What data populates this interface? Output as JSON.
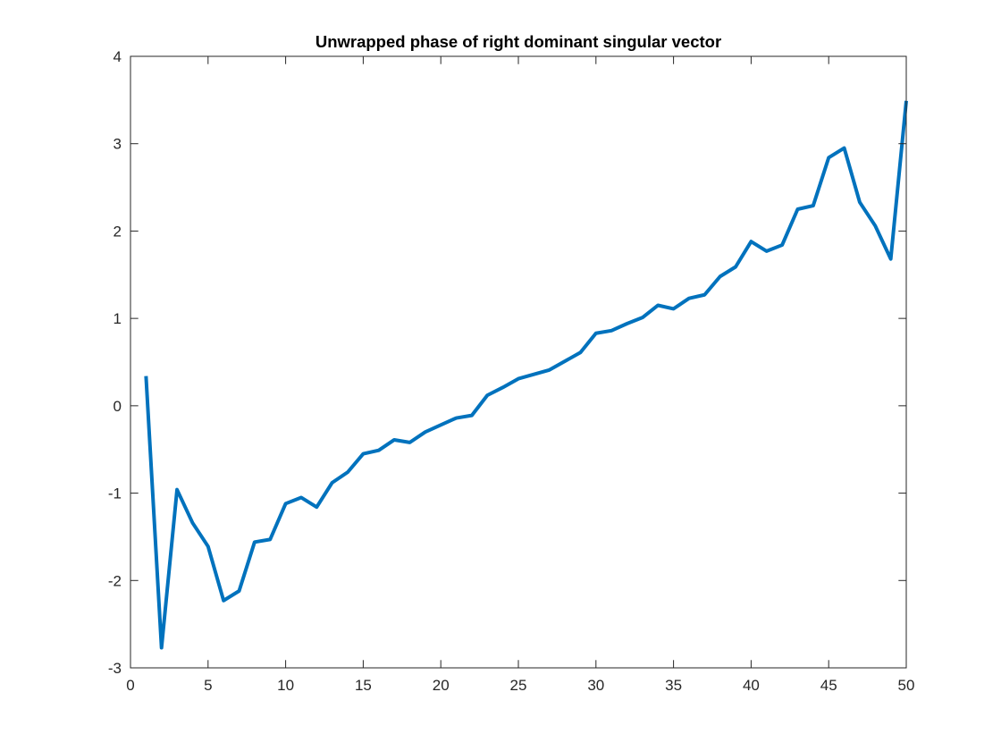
{
  "chart_data": {
    "type": "line",
    "title": "Unwrapped phase of right dominant singular vector",
    "xlabel": "",
    "ylabel": "",
    "xlim": [
      0,
      50
    ],
    "ylim": [
      -3,
      4
    ],
    "grid": false,
    "legend": "none",
    "x_ticks": [
      0,
      5,
      10,
      15,
      20,
      25,
      30,
      35,
      40,
      45,
      50
    ],
    "y_ticks": [
      -3,
      -2,
      -1,
      0,
      1,
      2,
      3,
      4
    ],
    "x_tick_labels": [
      "0",
      "5",
      "10",
      "15",
      "20",
      "25",
      "30",
      "35",
      "40",
      "45",
      "50"
    ],
    "y_tick_labels": [
      "-3",
      "-2",
      "-1",
      "0",
      "1",
      "2",
      "3",
      "4"
    ],
    "series": [
      {
        "color": "#0072BD",
        "x": [
          1,
          2,
          3,
          4,
          5,
          6,
          7,
          8,
          9,
          10,
          11,
          12,
          13,
          14,
          15,
          16,
          17,
          18,
          19,
          20,
          21,
          22,
          23,
          24,
          25,
          26,
          27,
          28,
          29,
          30,
          31,
          32,
          33,
          34,
          35,
          36,
          37,
          38,
          39,
          40,
          41,
          42,
          43,
          44,
          45,
          46,
          47,
          48,
          49,
          50
        ],
        "y": [
          0.34,
          -2.77,
          -0.96,
          -1.34,
          -1.61,
          -2.23,
          -2.12,
          -1.56,
          -1.53,
          -1.12,
          -1.05,
          -1.16,
          -0.88,
          -0.76,
          -0.55,
          -0.51,
          -0.39,
          -0.42,
          -0.3,
          -0.22,
          -0.14,
          -0.11,
          0.12,
          0.21,
          0.31,
          0.36,
          0.41,
          0.51,
          0.61,
          0.83,
          0.86,
          0.94,
          1.01,
          1.15,
          1.11,
          1.23,
          1.27,
          1.48,
          1.59,
          1.88,
          1.77,
          1.84,
          2.25,
          2.29,
          2.84,
          2.95,
          2.33,
          2.06,
          1.68,
          3.49
        ]
      }
    ]
  }
}
